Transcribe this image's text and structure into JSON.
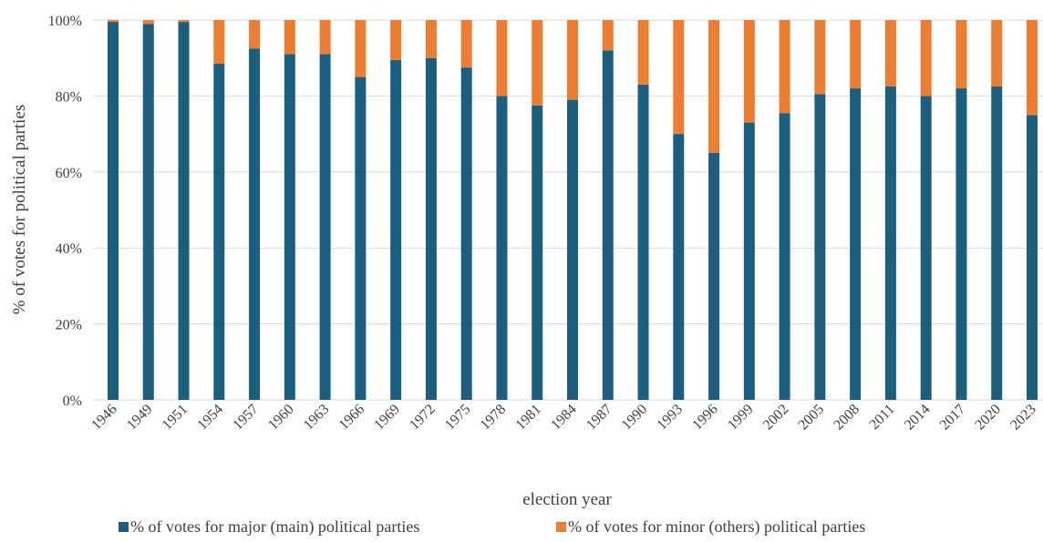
{
  "chart_data": {
    "type": "bar",
    "stacked": true,
    "categories": [
      "1946",
      "1949",
      "1951",
      "1954",
      "1957",
      "1960",
      "1963",
      "1966",
      "1969",
      "1972",
      "1975",
      "1978",
      "1981",
      "1984",
      "1987",
      "1990",
      "1993",
      "1996",
      "1999",
      "2002",
      "2005",
      "2008",
      "2011",
      "2014",
      "2017",
      "2020",
      "2023"
    ],
    "series": [
      {
        "name": "% of votes for major (main) political parties",
        "color": "#1a5f7f",
        "values": [
          99.5,
          99.0,
          99.5,
          88.5,
          92.5,
          91.0,
          91.0,
          85.0,
          89.5,
          90.0,
          87.5,
          80.0,
          77.5,
          79.0,
          92.0,
          83.0,
          70.0,
          65.0,
          73.0,
          75.5,
          80.5,
          82.0,
          82.5,
          80.0,
          82.0,
          82.5,
          75.0
        ]
      },
      {
        "name": "% of votes for minor (others) political parties",
        "color": "#ed7d31",
        "values": [
          0.5,
          1.0,
          0.5,
          11.5,
          7.5,
          9.0,
          9.0,
          15.0,
          10.5,
          10.0,
          12.5,
          20.0,
          22.5,
          21.0,
          8.0,
          17.0,
          30.0,
          35.0,
          27.0,
          24.5,
          19.5,
          18.0,
          17.5,
          20.0,
          18.0,
          17.5,
          25.0
        ]
      }
    ],
    "xlabel": "election year",
    "ylabel": "% of votes for political parties",
    "ylim": [
      0,
      100
    ],
    "yticks": [
      "0%",
      "20%",
      "40%",
      "60%",
      "80%",
      "100%"
    ],
    "grid": true,
    "legend_position": "bottom"
  }
}
